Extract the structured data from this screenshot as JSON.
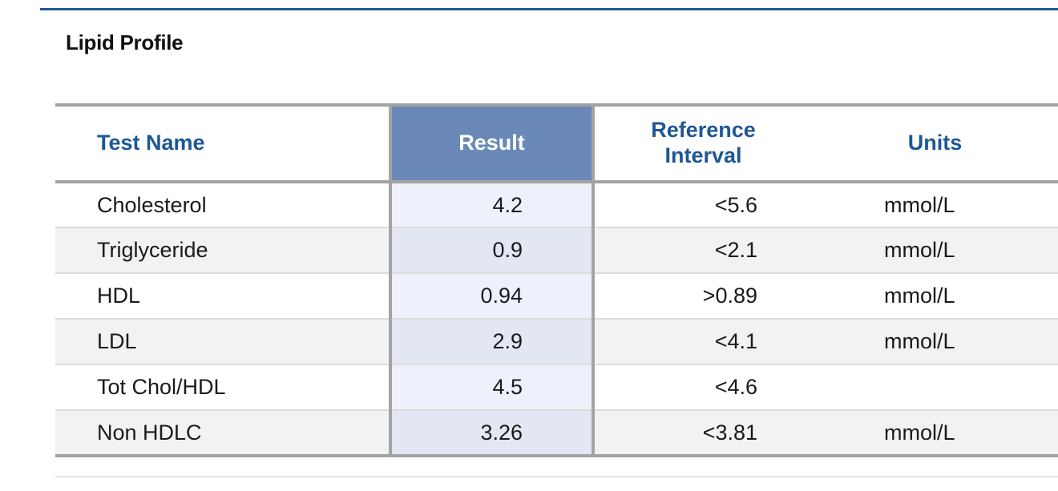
{
  "section": {
    "title": "Lipid Profile"
  },
  "table": {
    "headers": {
      "test_name": "Test Name",
      "result": "Result",
      "reference_line1": "Reference",
      "reference_line2": "Interval",
      "units": "Units"
    },
    "rows": [
      {
        "test_name": "Cholesterol",
        "result": "4.2",
        "reference": "<5.6",
        "units": "mmol/L"
      },
      {
        "test_name": "Triglyceride",
        "result": "0.9",
        "reference": "<2.1",
        "units": "mmol/L"
      },
      {
        "test_name": "HDL",
        "result": "0.94",
        "reference": ">0.89",
        "units": "mmol/L"
      },
      {
        "test_name": "LDL",
        "result": "2.9",
        "reference": "<4.1",
        "units": "mmol/L"
      },
      {
        "test_name": "Tot Chol/HDL",
        "result": "4.5",
        "reference": "<4.6",
        "units": ""
      },
      {
        "test_name": "Non HDLC",
        "result": "3.26",
        "reference": "<3.81",
        "units": "mmol/L"
      }
    ]
  },
  "colors": {
    "accent": "#1d5795",
    "result_header_bg": "#6a89b9",
    "result_cell_bg": "#eef1fb",
    "row_stripe": "#f2f2f2",
    "table_rule": "#a3a3a3"
  }
}
